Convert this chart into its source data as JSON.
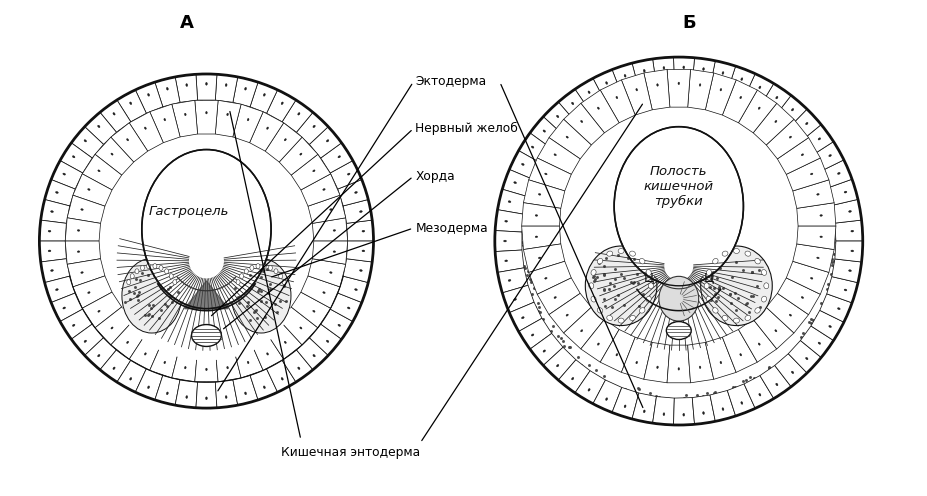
{
  "bg_color": "#ffffff",
  "fig_width": 9.27,
  "fig_height": 4.96,
  "label_A": "А",
  "label_B": "Б",
  "annotations": {
    "ektoderm": "Эктодерма",
    "nervny_zhelob": "Нервный желоб",
    "khorda": "Хорда",
    "mezoderm": "Мезодерма",
    "gastrocel": "Гастроцель",
    "kishechnaya_entoderm": "Кишечная энтодерма",
    "polost": "Полость\nкишечной\nтрубки"
  }
}
